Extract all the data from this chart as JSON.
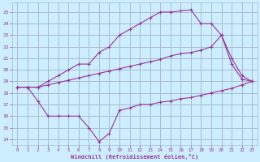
{
  "xlabel": "Windchill (Refroidissement éolien,°C)",
  "bg_color": "#cceeff",
  "grid_color": "#aabbcc",
  "line_color": "#993399",
  "xlim": [
    -0.5,
    23.5
  ],
  "ylim": [
    13.5,
    25.8
  ],
  "yticks": [
    14,
    15,
    16,
    17,
    18,
    19,
    20,
    21,
    22,
    23,
    24,
    25
  ],
  "xticks": [
    0,
    1,
    2,
    3,
    4,
    5,
    6,
    7,
    8,
    9,
    10,
    11,
    12,
    13,
    14,
    15,
    16,
    17,
    18,
    19,
    20,
    21,
    22,
    23
  ],
  "series": [
    {
      "x": [
        0,
        1,
        2,
        3,
        4,
        5,
        6,
        7,
        8,
        9,
        10,
        11,
        12,
        13,
        14,
        15,
        16,
        17,
        18,
        19,
        20,
        21,
        22,
        23
      ],
      "y": [
        18.5,
        18.5,
        18.5,
        19.0,
        19.5,
        20.0,
        20.5,
        20.5,
        21.5,
        22.0,
        23.0,
        23.5,
        24.0,
        24.5,
        25.0,
        25.0,
        25.1,
        25.2,
        24.0,
        24.0,
        23.0,
        20.5,
        19.2,
        19.0
      ]
    },
    {
      "x": [
        0,
        1,
        2,
        3,
        4,
        5,
        6,
        7,
        8,
        9,
        10,
        11,
        12,
        13,
        14,
        15,
        16,
        17,
        18,
        19,
        20,
        21,
        22,
        23
      ],
      "y": [
        18.5,
        18.5,
        18.5,
        18.7,
        18.9,
        19.1,
        19.3,
        19.5,
        19.7,
        19.9,
        20.1,
        20.3,
        20.5,
        20.7,
        20.9,
        21.2,
        21.4,
        21.5,
        21.7,
        22.0,
        23.0,
        21.0,
        19.5,
        19.0
      ]
    },
    {
      "x": [
        0,
        1,
        2,
        3,
        4,
        5,
        6,
        7,
        8,
        9,
        10,
        11,
        12,
        13,
        14,
        15,
        16,
        17,
        18,
        19,
        20,
        21,
        22,
        23
      ],
      "y": [
        18.5,
        18.5,
        17.3,
        16.0,
        16.0,
        16.0,
        16.0,
        15.0,
        13.8,
        14.5,
        16.5,
        16.7,
        17.0,
        17.0,
        17.2,
        17.3,
        17.5,
        17.6,
        17.8,
        18.0,
        18.2,
        18.4,
        18.7,
        19.0
      ]
    }
  ]
}
